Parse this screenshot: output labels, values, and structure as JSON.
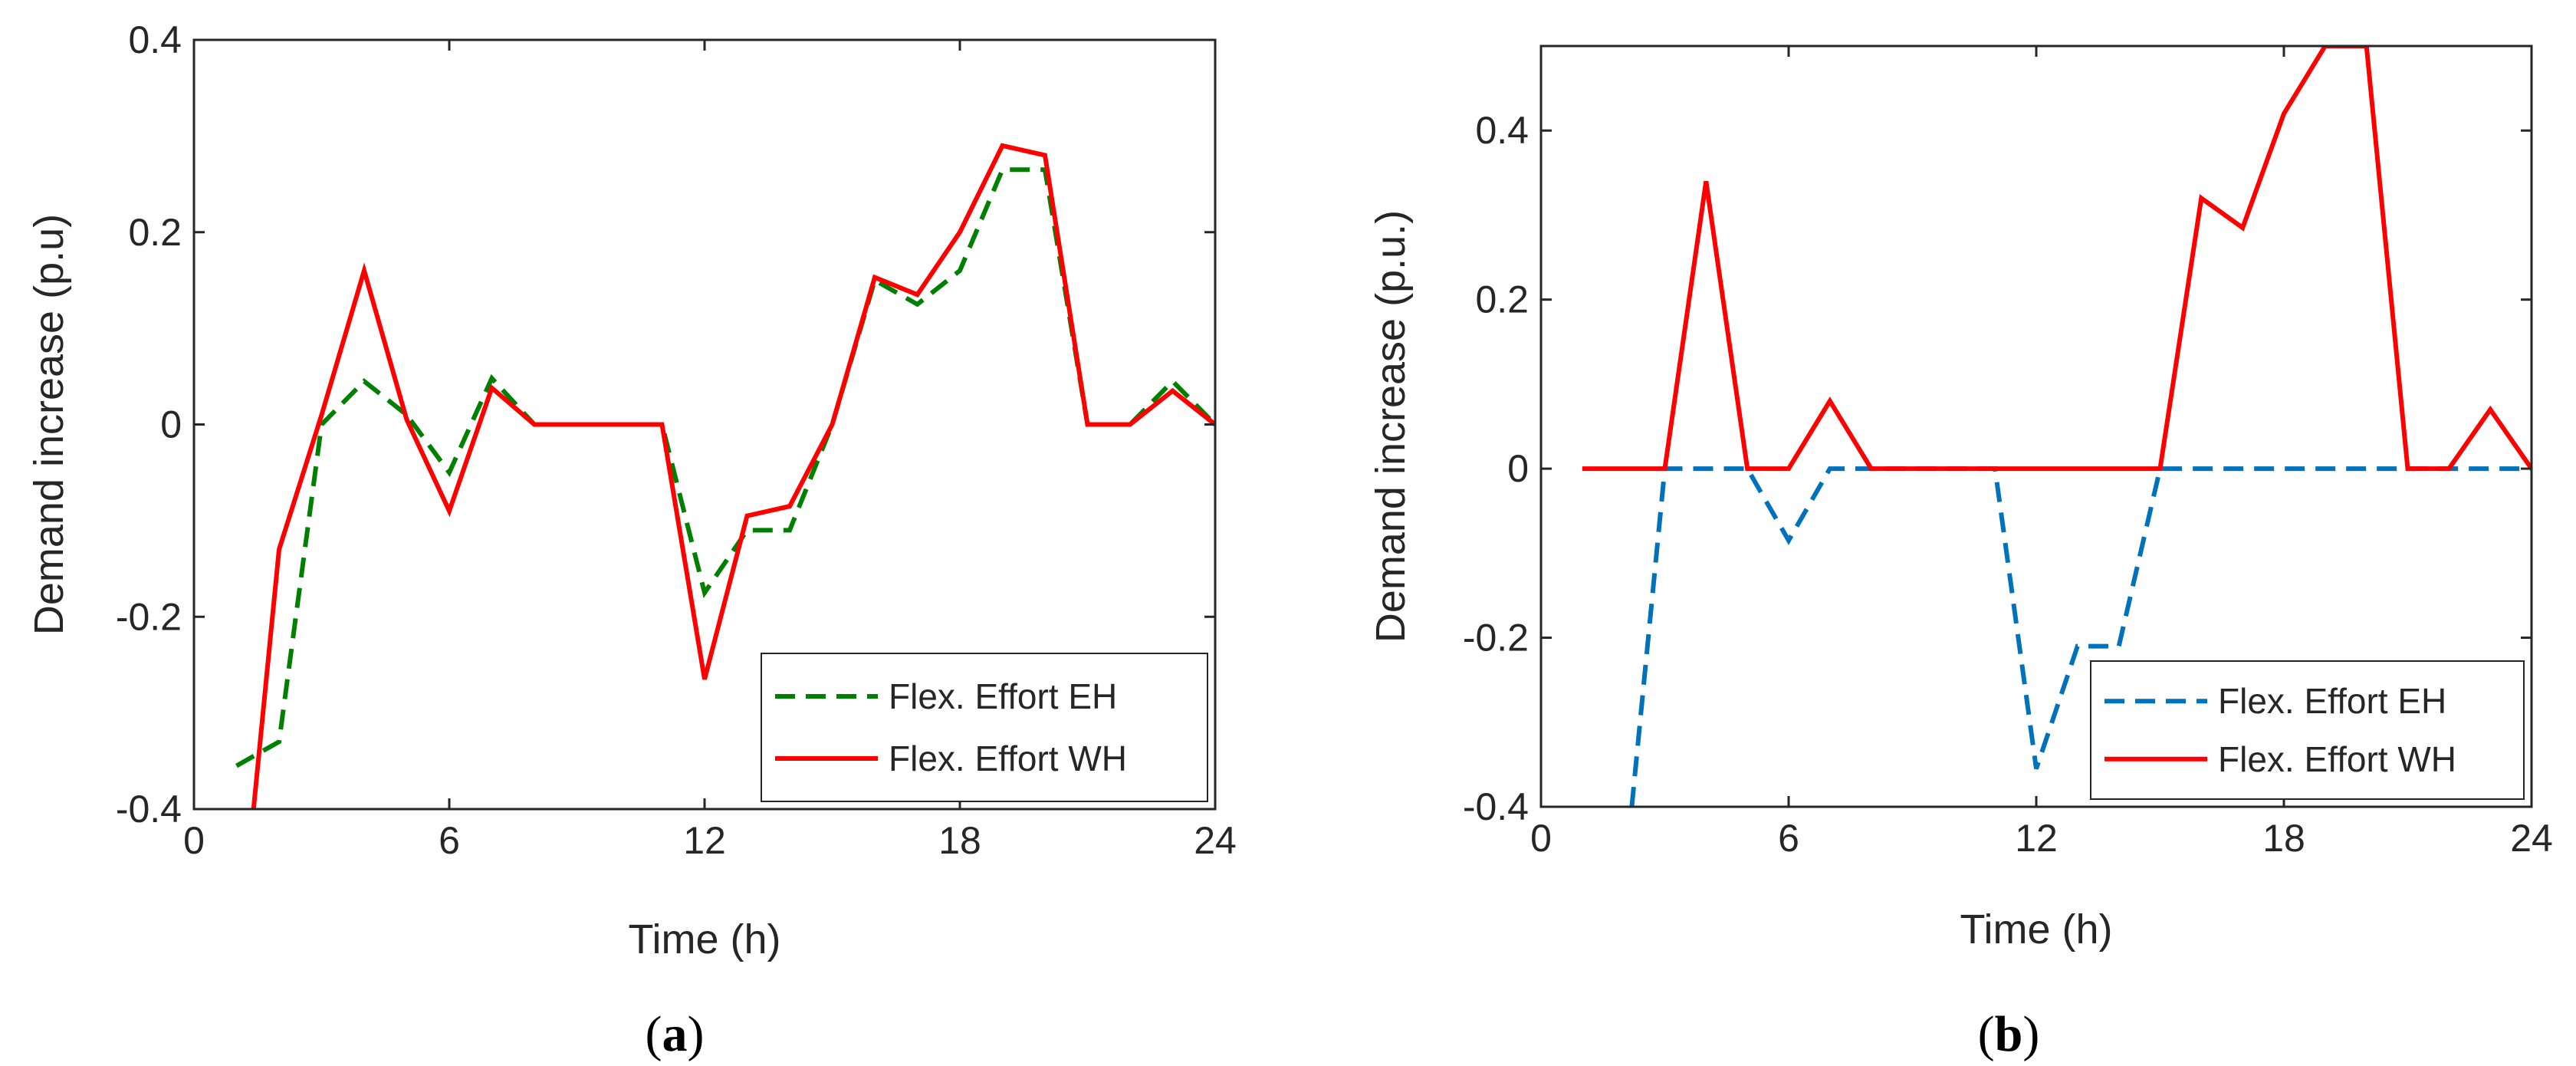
{
  "chart_data": [
    {
      "type": "line",
      "caption": {
        "open": "(",
        "letter": "a",
        "close": ")"
      },
      "xlabel": "Time (h)",
      "ylabel": "Demand increase (p.u)",
      "xlim": [
        0,
        24
      ],
      "ylim": [
        -0.4,
        0.4
      ],
      "xticks": [
        0,
        6,
        12,
        18,
        24
      ],
      "xtick_labels": [
        "0",
        "6",
        "12",
        "18",
        "24"
      ],
      "yticks": [
        -0.4,
        -0.2,
        0,
        0.2,
        0.4
      ],
      "ytick_labels": [
        "-0.4",
        "-0.2",
        "0",
        "0.2",
        "0.4"
      ],
      "grid": false,
      "legend_position": "bottom-right",
      "series": [
        {
          "name": "Flex. Effort EH",
          "color": "#008000",
          "style": "dashed",
          "x": [
            1,
            2,
            3,
            4,
            5,
            6,
            7,
            8,
            9,
            10,
            11,
            12,
            13,
            14,
            15,
            16,
            17,
            18,
            19,
            20,
            21,
            22,
            23,
            24
          ],
          "values": [
            -0.355,
            -0.33,
            0.0,
            0.045,
            0.01,
            -0.05,
            0.048,
            0.0,
            0.0,
            0.0,
            0.0,
            -0.175,
            -0.11,
            -0.11,
            0.0,
            0.15,
            0.125,
            0.16,
            0.265,
            0.265,
            0.0,
            0.0,
            0.045,
            0.0
          ]
        },
        {
          "name": "Flex. Effort WH",
          "color": "#ff0000",
          "style": "solid",
          "x": [
            1.4,
            2,
            3,
            4,
            5,
            6,
            7,
            8,
            9,
            10,
            11,
            12,
            13,
            14,
            15,
            16,
            17,
            18,
            19,
            20,
            21,
            22,
            23,
            24
          ],
          "values": [
            -0.4,
            -0.13,
            0.01,
            0.16,
            0.005,
            -0.09,
            0.038,
            0.0,
            0.0,
            0.0,
            0.0,
            -0.265,
            -0.095,
            -0.085,
            0.0,
            0.153,
            0.135,
            0.2,
            0.29,
            0.28,
            0.0,
            0.0,
            0.035,
            0.0
          ]
        }
      ]
    },
    {
      "type": "line",
      "caption": {
        "open": "(",
        "letter": "b",
        "close": ")"
      },
      "xlabel": "Time (h)",
      "ylabel": "Demand increase (p.u.)",
      "xlim": [
        0,
        24
      ],
      "ylim": [
        -0.4,
        0.5
      ],
      "xticks": [
        0,
        6,
        12,
        18,
        24
      ],
      "xtick_labels": [
        "0",
        "6",
        "12",
        "18",
        "24"
      ],
      "yticks": [
        -0.4,
        -0.2,
        0,
        0.2,
        0.4
      ],
      "ytick_labels": [
        "-0.4",
        "-0.2",
        "0",
        "0.2",
        "0.4"
      ],
      "grid": false,
      "legend_position": "bottom-right",
      "series": [
        {
          "name": "Flex. Effort EH",
          "color": "#0072bd",
          "style": "dashed",
          "x": [
            2.2,
            3,
            4,
            5,
            6,
            7,
            8,
            9,
            10,
            11,
            12,
            13,
            14,
            15,
            16,
            17,
            18,
            19,
            20,
            21,
            22,
            23,
            24
          ],
          "values": [
            -0.4,
            0.0,
            0.0,
            0.0,
            -0.085,
            0.0,
            0.0,
            0.0,
            0.0,
            0.0,
            -0.355,
            -0.21,
            -0.21,
            0.0,
            0.0,
            0.0,
            0.0,
            0.0,
            0.0,
            0.0,
            0.0,
            0.0,
            0.0
          ]
        },
        {
          "name": "Flex. Effort WH",
          "color": "#ff0000",
          "style": "solid",
          "x": [
            1,
            2,
            3,
            4,
            5,
            6,
            7,
            8,
            9,
            10,
            11,
            12,
            13,
            14,
            15,
            16,
            17,
            18,
            19,
            20,
            21,
            22,
            23,
            24
          ],
          "values": [
            0.0,
            0.0,
            0.0,
            0.34,
            0.0,
            0.0,
            0.08,
            0.0,
            0.0,
            0.0,
            0.0,
            0.0,
            0.0,
            0.0,
            0.0,
            0.32,
            0.285,
            0.42,
            0.5,
            0.5,
            0.0,
            0.0,
            0.07,
            0.0
          ]
        }
      ]
    }
  ]
}
